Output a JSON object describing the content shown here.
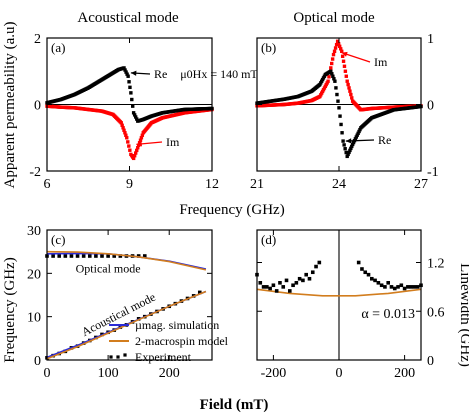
{
  "figure": {
    "titles": [
      "Acoustical mode",
      "Optical mode"
    ],
    "top_xlabel": "Frequency (GHz)",
    "bottom_xlabel": "Field (mT)",
    "field_annotation": "μ0Hx = 140 mT"
  },
  "colors": {
    "black": "#000000",
    "red": "#ff0000",
    "blue": "#2b2bd6",
    "orange": "#d27d1e"
  },
  "chart_data": [
    {
      "id": "a",
      "panel_label": "(a)",
      "type": "scatter",
      "title": "Acoustical mode",
      "xlabel": "Frequency (GHz)",
      "ylabel": "Apparent permeability (a.u)",
      "xlim": [
        6,
        12
      ],
      "ylim": [
        -2,
        2
      ],
      "xticks": [
        "6",
        "9",
        "12"
      ],
      "yticks": [
        "-2",
        "0",
        "2"
      ],
      "annotations": [
        "Re",
        "Im"
      ],
      "series": [
        {
          "name": "Re",
          "color": "#000000",
          "x": [
            6,
            6.5,
            7,
            7.5,
            8,
            8.3,
            8.6,
            8.8,
            8.95,
            9.05,
            9.15,
            9.3,
            9.5,
            9.8,
            10.2,
            11,
            12
          ],
          "y": [
            0.05,
            0.15,
            0.3,
            0.5,
            0.75,
            0.9,
            1.05,
            1.1,
            0.85,
            0.35,
            -0.25,
            -0.5,
            -0.45,
            -0.35,
            -0.25,
            -0.15,
            -0.12
          ]
        },
        {
          "name": "Im",
          "color": "#ff0000",
          "x": [
            6,
            6.5,
            7,
            7.5,
            8,
            8.4,
            8.7,
            8.9,
            9.05,
            9.15,
            9.3,
            9.5,
            9.8,
            10.2,
            11,
            12
          ],
          "y": [
            -0.05,
            -0.08,
            -0.1,
            -0.15,
            -0.2,
            -0.3,
            -0.55,
            -1.0,
            -1.5,
            -1.62,
            -1.3,
            -0.85,
            -0.55,
            -0.4,
            -0.25,
            -0.15
          ]
        }
      ]
    },
    {
      "id": "b",
      "panel_label": "(b)",
      "type": "scatter",
      "title": "Optical mode",
      "xlabel": "Frequency (GHz)",
      "ylabel": "",
      "xlim": [
        21,
        27
      ],
      "ylim": [
        -1,
        1
      ],
      "xticks": [
        "21",
        "24",
        "27"
      ],
      "yticks": [
        "-1",
        "0",
        "1"
      ],
      "annotations": [
        "Im",
        "Re"
      ],
      "series": [
        {
          "name": "Im",
          "color": "#ff0000",
          "x": [
            21,
            21.5,
            22,
            22.5,
            23,
            23.3,
            23.6,
            23.8,
            23.95,
            24.1,
            24.3,
            24.5,
            24.8,
            25.2,
            26,
            27
          ],
          "y": [
            -0.02,
            -0.01,
            0,
            0.02,
            0.06,
            0.12,
            0.35,
            0.75,
            0.95,
            0.8,
            0.35,
            0.05,
            -0.08,
            -0.06,
            -0.04,
            -0.02
          ]
        },
        {
          "name": "Re",
          "color": "#000000",
          "x": [
            21,
            21.5,
            22,
            22.5,
            23,
            23.3,
            23.5,
            23.7,
            23.85,
            24.0,
            24.15,
            24.3,
            24.5,
            24.8,
            25.2,
            26,
            27
          ],
          "y": [
            0.02,
            0.05,
            0.08,
            0.12,
            0.2,
            0.3,
            0.45,
            0.5,
            0.35,
            -0.05,
            -0.55,
            -0.78,
            -0.6,
            -0.35,
            -0.2,
            -0.08,
            -0.03
          ]
        }
      ]
    },
    {
      "id": "c",
      "panel_label": "(c)",
      "type": "line",
      "xlabel": "Field (mT)",
      "ylabel": "Frequency (GHz)",
      "xlim": [
        0,
        270
      ],
      "ylim": [
        0,
        30
      ],
      "xticks": [
        "0",
        "100",
        "200"
      ],
      "yticks": [
        "0",
        "10",
        "20",
        "30"
      ],
      "annotations": [
        "Optical mode",
        "Acoustical mode"
      ],
      "legend": [
        "µmag. simulation",
        "2-macrospin model",
        "Experiment"
      ],
      "series": [
        {
          "name": "µmag. simulation",
          "color": "#2b2bd6",
          "x": [
            0,
            50,
            100,
            150,
            200,
            260
          ],
          "y": [
            24.5,
            24.6,
            24.5,
            23.8,
            22.8,
            21.0
          ]
        },
        {
          "name": "2-macrospin model",
          "color": "#d27d1e",
          "x": [
            0,
            50,
            100,
            150,
            200,
            260
          ],
          "y": [
            25.0,
            24.9,
            24.5,
            23.8,
            22.7,
            20.8
          ]
        },
        {
          "name": "µmag. simulation",
          "color": "#2b2bd6",
          "x": [
            0,
            50,
            100,
            150,
            200,
            260
          ],
          "y": [
            0.6,
            3.4,
            6.4,
            9.4,
            12.4,
            15.8
          ]
        },
        {
          "name": "2-macrospin model",
          "color": "#d27d1e",
          "x": [
            0,
            50,
            100,
            150,
            200,
            260
          ],
          "y": [
            0.3,
            3.1,
            6.2,
            9.3,
            12.4,
            15.8
          ]
        },
        {
          "name": "Experiment",
          "color": "#000000",
          "x": [
            0,
            10,
            20,
            30,
            40,
            50,
            60,
            70,
            80,
            90,
            100,
            110,
            120,
            130,
            140,
            150,
            160,
            0,
            10,
            20,
            30,
            40,
            50,
            60,
            70,
            80,
            90,
            100,
            110,
            120,
            130,
            140,
            150,
            160,
            170,
            180,
            190,
            200,
            210,
            220,
            230,
            240,
            250
          ],
          "y": [
            24.0,
            24.0,
            24.0,
            24.0,
            24.0,
            24.0,
            24.0,
            24.0,
            24.0,
            24.0,
            24.0,
            24.0,
            24.0,
            24.0,
            24.0,
            24.0,
            24.0,
            0.5,
            1.0,
            1.5,
            2.0,
            2.8,
            3.2,
            3.9,
            4.5,
            5.2,
            5.9,
            6.4,
            6.9,
            7.6,
            8.1,
            8.8,
            9.5,
            10.0,
            10.6,
            11.2,
            11.8,
            12.4,
            13.0,
            13.6,
            14.2,
            14.8,
            15.6
          ]
        }
      ]
    },
    {
      "id": "d",
      "panel_label": "(d)",
      "type": "scatter",
      "xlabel": "Field (mT)",
      "ylabel": "Linewidth (GHz)",
      "xlim": [
        -250,
        250
      ],
      "ylim": [
        0,
        1.6
      ],
      "xticks": [
        "-200",
        "0",
        "200"
      ],
      "yticks": [
        "0",
        "0.6",
        "1.2"
      ],
      "annotations": [
        "α = 0.013"
      ],
      "series": [
        {
          "name": "α = 0.013",
          "color": "#d27d1e",
          "x": [
            -250,
            -150,
            -50,
            0,
            50,
            150,
            250
          ],
          "y": [
            0.87,
            0.82,
            0.79,
            0.79,
            0.79,
            0.82,
            0.87
          ]
        },
        {
          "name": "Experiment",
          "color": "#000000",
          "x": [
            -250,
            -240,
            -230,
            -220,
            -210,
            -200,
            -190,
            -180,
            -170,
            -160,
            -150,
            -140,
            -130,
            -120,
            -110,
            -100,
            -90,
            -80,
            -70,
            -60,
            60,
            70,
            80,
            90,
            100,
            110,
            120,
            130,
            140,
            150,
            160,
            170,
            180,
            190,
            200,
            210,
            220,
            230,
            240,
            250
          ],
          "y": [
            1.05,
            0.95,
            0.9,
            0.9,
            0.88,
            0.92,
            0.85,
            0.95,
            0.9,
            0.98,
            0.85,
            0.92,
            0.95,
            1.0,
            0.98,
            1.05,
            1.0,
            1.08,
            1.15,
            1.2,
            1.2,
            1.12,
            1.08,
            1.05,
            1.0,
            0.98,
            0.95,
            0.92,
            0.9,
            0.95,
            0.9,
            0.88,
            0.9,
            0.92,
            0.88,
            0.9,
            0.9,
            0.9,
            0.9,
            0.92
          ]
        }
      ]
    }
  ]
}
